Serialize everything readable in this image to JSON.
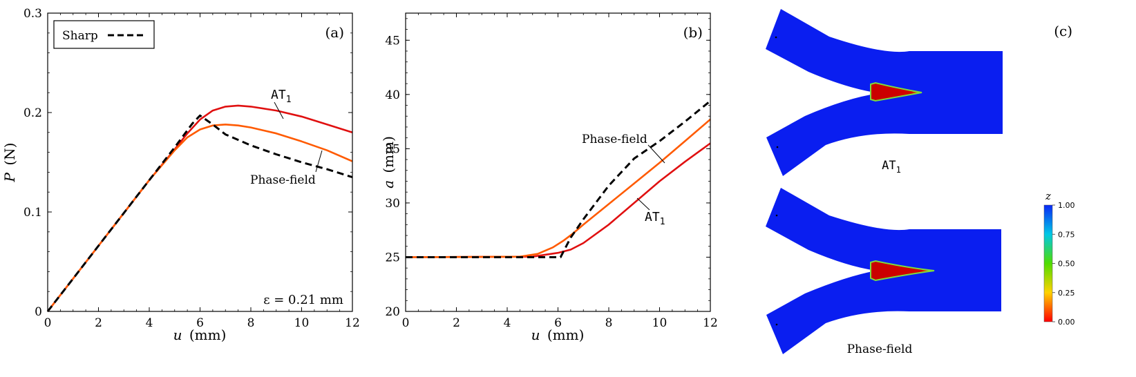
{
  "colors": {
    "sharp": "#000000",
    "at1": "#e01010",
    "phase_field": "#ff5a00",
    "mesh_blue": "#0a1ef0",
    "crack_red": "#c80000",
    "crack_edge": "#7ddc3c"
  },
  "chart_data": [
    {
      "type": "line",
      "panel_label": "(a)",
      "ylabel_var": "P",
      "ylabel_unit": "(N)",
      "xlabel_var": "u",
      "xlabel_unit": "(mm)",
      "xlim": [
        0,
        12
      ],
      "ylim": [
        0,
        0.3
      ],
      "xticks": [
        0,
        2,
        4,
        6,
        8,
        10,
        12
      ],
      "yticks": [
        0,
        0.1,
        0.2,
        0.3
      ],
      "ytick_labels": [
        "0",
        "0.1",
        "0.2",
        "0.3"
      ],
      "legend": {
        "label": "Sharp",
        "position": "top-left"
      },
      "annotation_eps": "ε = 0.21 mm",
      "label_at1_base": "AT",
      "label_at1_sub": "1",
      "label_phase_field": "Phase-field",
      "series": [
        {
          "name": "Sharp",
          "style": "dashed",
          "x": [
            0,
            1,
            2,
            3,
            4,
            5,
            5.7,
            6.0,
            6.5,
            7,
            8,
            9,
            10,
            11,
            12
          ],
          "y": [
            0,
            0.033,
            0.066,
            0.099,
            0.132,
            0.165,
            0.189,
            0.197,
            0.188,
            0.178,
            0.167,
            0.158,
            0.15,
            0.143,
            0.135
          ]
        },
        {
          "name": "AT1",
          "x": [
            0,
            1,
            2,
            3,
            4,
            5,
            5.5,
            6,
            6.5,
            7,
            7.5,
            8,
            9,
            10,
            11,
            12
          ],
          "y": [
            0,
            0.033,
            0.066,
            0.099,
            0.132,
            0.163,
            0.179,
            0.193,
            0.202,
            0.206,
            0.207,
            0.206,
            0.202,
            0.196,
            0.188,
            0.18
          ]
        },
        {
          "name": "Phase-field",
          "x": [
            0,
            1,
            2,
            3,
            4,
            5,
            5.5,
            6,
            6.5,
            7,
            7.5,
            8,
            9,
            10,
            11,
            12
          ],
          "y": [
            0,
            0.033,
            0.066,
            0.099,
            0.132,
            0.162,
            0.175,
            0.183,
            0.187,
            0.188,
            0.187,
            0.185,
            0.179,
            0.171,
            0.162,
            0.151
          ]
        }
      ]
    },
    {
      "type": "line",
      "panel_label": "(b)",
      "ylabel_var": "a",
      "ylabel_unit": "(mm)",
      "xlabel_var": "u",
      "xlabel_unit": "(mm)",
      "xlim": [
        0,
        12
      ],
      "ylim": [
        20,
        47.5
      ],
      "xticks": [
        0,
        2,
        4,
        6,
        8,
        10,
        12
      ],
      "yticks": [
        20,
        25,
        30,
        35,
        40,
        45
      ],
      "label_at1_base": "AT",
      "label_at1_sub": "1",
      "label_phase_field": "Phase-field",
      "series": [
        {
          "name": "Sharp",
          "style": "dashed",
          "x": [
            0,
            6.1,
            6.5,
            7,
            8,
            9,
            10,
            11,
            12
          ],
          "y": [
            25,
            25,
            26.8,
            28.5,
            31.6,
            34.1,
            35.7,
            37.5,
            39.4
          ]
        },
        {
          "name": "AT1",
          "x": [
            0,
            5,
            6,
            6.5,
            7,
            8,
            9,
            10,
            11,
            12
          ],
          "y": [
            25,
            25.05,
            25.4,
            25.7,
            26.3,
            28.0,
            30.0,
            32.0,
            33.8,
            35.5
          ]
        },
        {
          "name": "Phase-field",
          "x": [
            0,
            4.5,
            5.2,
            5.8,
            6.2,
            6.6,
            7,
            8,
            9,
            10,
            11,
            12
          ],
          "y": [
            25,
            25.05,
            25.3,
            25.9,
            26.5,
            27.2,
            28.0,
            29.9,
            31.8,
            33.7,
            35.7,
            37.7
          ]
        }
      ]
    }
  ],
  "panel_c": {
    "label": "(c)",
    "top_caption_base": "AT",
    "top_caption_sub": "1",
    "bottom_caption": "Phase-field",
    "colorbar": {
      "title": "z",
      "ticks": [
        "1.00",
        "0.75",
        "0.50",
        "0.25",
        "0.00"
      ]
    }
  }
}
